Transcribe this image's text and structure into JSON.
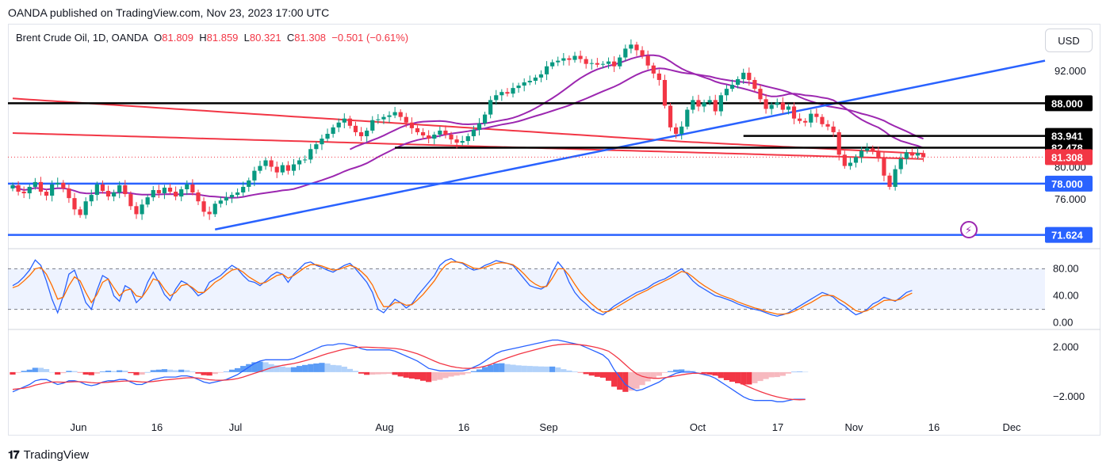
{
  "publisher_line": "OANDA published on TradingView.com, Nov 23, 2023 17:00 UTC",
  "legend": {
    "symbol": "Brent Crude Oil, 1D, OANDA",
    "o_label": "O",
    "o_value": "81.809",
    "h_label": "H",
    "h_value": "81.859",
    "l_label": "L",
    "l_value": "80.321",
    "c_label": "C",
    "c_value": "81.308",
    "change": "−0.501 (−0.61%)"
  },
  "currency_button": "USD",
  "brand": "TradingView",
  "colors": {
    "up": "#089981",
    "down": "#f23645",
    "support": "#2962ff",
    "resistance": "#000000",
    "ma_red": "#f23645",
    "ma_purple": "#9c27b0",
    "rsi_fast": "#2962ff",
    "rsi_slow": "#ff6d00",
    "macd_hist_pos": "#5b9cf6",
    "macd_hist_neg": "#f23645"
  },
  "chart_data": [
    {
      "type": "candlestick",
      "title": "Brent Crude Oil, 1D, OANDA",
      "ylim": [
        70.5,
        97.5
      ],
      "x_ticks": [
        "Jun",
        "16",
        "Jul",
        "Aug",
        "16",
        "Sep",
        "Oct",
        "17",
        "Nov",
        "16",
        "Dec"
      ],
      "price_axis_ticks": [
        "92.000",
        "80.000",
        "76.000"
      ],
      "horizontal_levels": [
        {
          "value": 88.0,
          "label": "88.000",
          "color": "#000000"
        },
        {
          "value": 83.941,
          "label": "83.941",
          "color": "#000000"
        },
        {
          "value": 82.478,
          "label": "82.478",
          "color": "#000000"
        },
        {
          "value": 78.0,
          "label": "78.000",
          "color": "#2962ff"
        },
        {
          "value": 71.624,
          "label": "71.624",
          "color": "#2962ff"
        }
      ],
      "last_price": {
        "value": 81.308,
        "label": "81.308"
      },
      "closes": [
        77.8,
        77.0,
        76.8,
        77.6,
        78.2,
        77.0,
        76.5,
        77.9,
        78.1,
        77.4,
        76.2,
        74.8,
        74.1,
        75.8,
        76.6,
        77.9,
        77.1,
        76.4,
        76.9,
        77.8,
        76.7,
        75.2,
        74.2,
        75.4,
        76.3,
        77.2,
        76.8,
        77.5,
        77.0,
        76.4,
        77.3,
        77.9,
        76.9,
        75.8,
        74.5,
        74.2,
        75.5,
        75.9,
        76.3,
        76.6,
        76.9,
        77.6,
        78.4,
        79.6,
        80.2,
        80.9,
        80.1,
        79.4,
        80.3,
        79.6,
        80.4,
        80.9,
        81.0,
        82.3,
        82.9,
        83.6,
        84.2,
        85.0,
        85.6,
        86.1,
        85.2,
        84.4,
        83.9,
        84.6,
        85.9,
        86.0,
        86.3,
        86.5,
        86.9,
        86.3,
        85.6,
        84.9,
        84.4,
        84.0,
        83.6,
        84.1,
        84.6,
        84.1,
        83.5,
        83.1,
        83.3,
        83.9,
        84.7,
        85.5,
        86.6,
        88.4,
        89.0,
        89.4,
        89.2,
        89.9,
        90.2,
        90.6,
        90.8,
        91.2,
        91.6,
        92.6,
        93.1,
        93.3,
        93.6,
        93.4,
        93.9,
        93.5,
        92.9,
        93.0,
        92.8,
        92.9,
        93.2,
        92.6,
        93.7,
        94.8,
        95.3,
        94.6,
        93.9,
        92.7,
        91.7,
        90.9,
        87.7,
        85.0,
        84.2,
        85.1,
        87.2,
        88.4,
        87.6,
        88.1,
        88.4,
        87.0,
        89.0,
        89.8,
        90.3,
        91.0,
        91.8,
        90.9,
        89.8,
        88.5,
        87.3,
        87.8,
        88.1,
        87.2,
        87.6,
        86.1,
        85.8,
        85.6,
        86.7,
        86.3,
        85.4,
        85.1,
        84.4,
        81.6,
        80.2,
        80.6,
        81.3,
        82.1,
        82.4,
        82.1,
        81.3,
        79.0,
        77.6,
        79.8,
        81.1,
        81.9,
        81.5,
        81.8,
        81.3
      ]
    },
    {
      "type": "line",
      "title": "RSI",
      "ylim": [
        -5,
        105
      ],
      "y_ticks": [
        "80.00",
        "40.00",
        "0.00"
      ],
      "band": [
        20,
        80
      ],
      "series": [
        {
          "color": "#2962ff",
          "values": [
            55,
            60,
            68,
            78,
            93,
            85,
            62,
            35,
            15,
            40,
            72,
            78,
            55,
            30,
            20,
            48,
            70,
            65,
            40,
            32,
            55,
            50,
            30,
            38,
            60,
            75,
            60,
            42,
            33,
            50,
            62,
            58,
            50,
            40,
            45,
            60,
            65,
            70,
            78,
            85,
            80,
            70,
            62,
            60,
            55,
            62,
            70,
            75,
            72,
            60,
            72,
            80,
            88,
            90,
            85,
            82,
            78,
            75,
            80,
            85,
            88,
            80,
            70,
            60,
            45,
            20,
            15,
            25,
            35,
            30,
            22,
            28,
            40,
            50,
            60,
            70,
            85,
            92,
            95,
            90,
            88,
            82,
            78,
            80,
            85,
            88,
            92,
            90,
            88,
            85,
            75,
            65,
            55,
            52,
            50,
            55,
            75,
            90,
            80,
            60,
            45,
            35,
            28,
            20,
            15,
            12,
            18,
            25,
            30,
            35,
            40,
            45,
            48,
            52,
            58,
            62,
            65,
            70,
            75,
            80,
            72,
            62,
            55,
            50,
            45,
            40,
            38,
            35,
            32,
            28,
            25,
            22,
            20,
            18,
            15,
            12,
            10,
            12,
            15,
            20,
            25,
            30,
            35,
            40,
            45,
            42,
            38,
            30,
            25,
            18,
            12,
            15,
            20,
            28,
            32,
            38,
            35,
            32,
            38,
            45,
            48
          ]
        },
        {
          "color": "#ff6d00",
          "values": [
            52,
            55,
            62,
            70,
            80,
            82,
            72,
            55,
            35,
            38,
            55,
            68,
            62,
            45,
            30,
            42,
            60,
            65,
            52,
            40,
            48,
            50,
            40,
            38,
            50,
            65,
            62,
            50,
            40,
            45,
            55,
            57,
            52,
            45,
            45,
            52,
            60,
            65,
            72,
            78,
            80,
            75,
            68,
            63,
            58,
            60,
            65,
            70,
            72,
            66,
            70,
            76,
            82,
            86,
            86,
            84,
            81,
            78,
            79,
            82,
            85,
            82,
            76,
            68,
            56,
            38,
            24,
            24,
            30,
            30,
            26,
            27,
            34,
            42,
            52,
            62,
            75,
            85,
            90,
            90,
            89,
            85,
            81,
            80,
            82,
            85,
            88,
            89,
            88,
            86,
            80,
            72,
            63,
            57,
            53,
            54,
            66,
            80,
            80,
            70,
            57,
            45,
            36,
            28,
            21,
            16,
            17,
            21,
            26,
            31,
            36,
            41,
            45,
            49,
            54,
            58,
            62,
            66,
            71,
            76,
            74,
            68,
            61,
            55,
            50,
            45,
            41,
            38,
            35,
            31,
            28,
            25,
            22,
            20,
            17,
            15,
            13,
            13,
            14,
            17,
            21,
            26,
            30,
            35,
            40,
            41,
            40,
            35,
            30,
            24,
            18,
            16,
            18,
            23,
            28,
            33,
            34,
            33,
            35,
            40,
            44
          ]
        }
      ]
    },
    {
      "type": "line",
      "title": "MACD",
      "ylim": [
        -3.6,
        3.2
      ],
      "y_ticks": [
        "2.000",
        "−2.000"
      ],
      "series": [
        {
          "color": "#2962ff",
          "values": [
            -1.6,
            -1.4,
            -1.2,
            -1.0,
            -0.7,
            -0.6,
            -0.6,
            -0.8,
            -1.0,
            -0.9,
            -0.7,
            -0.7,
            -0.8,
            -1.0,
            -1.1,
            -1.0,
            -0.8,
            -0.7,
            -0.7,
            -0.6,
            -0.6,
            -0.8,
            -1.0,
            -1.0,
            -0.8,
            -0.6,
            -0.5,
            -0.4,
            -0.4,
            -0.4,
            -0.3,
            -0.3,
            -0.4,
            -0.6,
            -0.8,
            -0.9,
            -0.8,
            -0.7,
            -0.6,
            -0.4,
            -0.2,
            0.1,
            0.4,
            0.7,
            0.9,
            1.0,
            1.0,
            1.0,
            1.0,
            1.0,
            1.1,
            1.3,
            1.5,
            1.7,
            1.9,
            2.1,
            2.2,
            2.2,
            2.3,
            2.3,
            2.2,
            2.1,
            1.9,
            1.8,
            1.8,
            1.8,
            1.8,
            1.8,
            1.7,
            1.5,
            1.3,
            1.1,
            0.9,
            0.6,
            0.3,
            0.2,
            0.1,
            0.1,
            0.1,
            0.1,
            0.1,
            0.2,
            0.4,
            0.6,
            0.9,
            1.2,
            1.5,
            1.7,
            1.8,
            1.9,
            2.0,
            2.1,
            2.2,
            2.3,
            2.4,
            2.5,
            2.6,
            2.6,
            2.5,
            2.4,
            2.3,
            2.2,
            2.0,
            1.8,
            1.6,
            1.4,
            1.0,
            0.2,
            -0.4,
            -1.0,
            -1.3,
            -1.5,
            -1.4,
            -1.2,
            -1.0,
            -0.8,
            -0.5,
            -0.3,
            -0.1,
            0.0,
            0.0,
            0.0,
            -0.1,
            -0.2,
            -0.3,
            -0.5,
            -0.8,
            -1.1,
            -1.4,
            -1.7,
            -2.0,
            -2.2,
            -2.3,
            -2.3,
            -2.3,
            -2.3,
            -2.4,
            -2.4,
            -2.3,
            -2.2,
            -2.2,
            -2.2
          ]
        },
        {
          "color": "#f23645",
          "values": [
            -1.4,
            -1.35,
            -1.3,
            -1.2,
            -1.05,
            -0.95,
            -0.85,
            -0.8,
            -0.8,
            -0.82,
            -0.8,
            -0.78,
            -0.78,
            -0.8,
            -0.85,
            -0.88,
            -0.85,
            -0.82,
            -0.78,
            -0.75,
            -0.72,
            -0.72,
            -0.76,
            -0.8,
            -0.8,
            -0.76,
            -0.7,
            -0.64,
            -0.6,
            -0.55,
            -0.5,
            -0.46,
            -0.45,
            -0.48,
            -0.55,
            -0.62,
            -0.65,
            -0.66,
            -0.64,
            -0.6,
            -0.52,
            -0.4,
            -0.25,
            -0.1,
            0.05,
            0.2,
            0.35,
            0.45,
            0.55,
            0.62,
            0.7,
            0.8,
            0.92,
            1.05,
            1.2,
            1.35,
            1.5,
            1.62,
            1.75,
            1.86,
            1.94,
            2.0,
            2.02,
            2.02,
            2.0,
            1.98,
            1.96,
            1.94,
            1.92,
            1.85,
            1.75,
            1.62,
            1.48,
            1.3,
            1.1,
            0.9,
            0.72,
            0.58,
            0.46,
            0.38,
            0.32,
            0.3,
            0.32,
            0.38,
            0.48,
            0.62,
            0.8,
            0.98,
            1.15,
            1.3,
            1.45,
            1.58,
            1.7,
            1.82,
            1.94,
            2.05,
            2.15,
            2.22,
            2.26,
            2.27,
            2.25,
            2.22,
            2.16,
            2.08,
            1.98,
            1.85,
            1.7,
            1.38,
            1.02,
            0.6,
            0.2,
            -0.15,
            -0.35,
            -0.45,
            -0.5,
            -0.5,
            -0.45,
            -0.38,
            -0.3,
            -0.22,
            -0.15,
            -0.1,
            -0.1,
            -0.12,
            -0.16,
            -0.22,
            -0.32,
            -0.45,
            -0.62,
            -0.8,
            -1.0,
            -1.2,
            -1.4,
            -1.58,
            -1.74,
            -1.88,
            -2.0,
            -2.1,
            -2.18,
            -2.22,
            -2.24,
            -2.22
          ]
        }
      ]
    }
  ]
}
